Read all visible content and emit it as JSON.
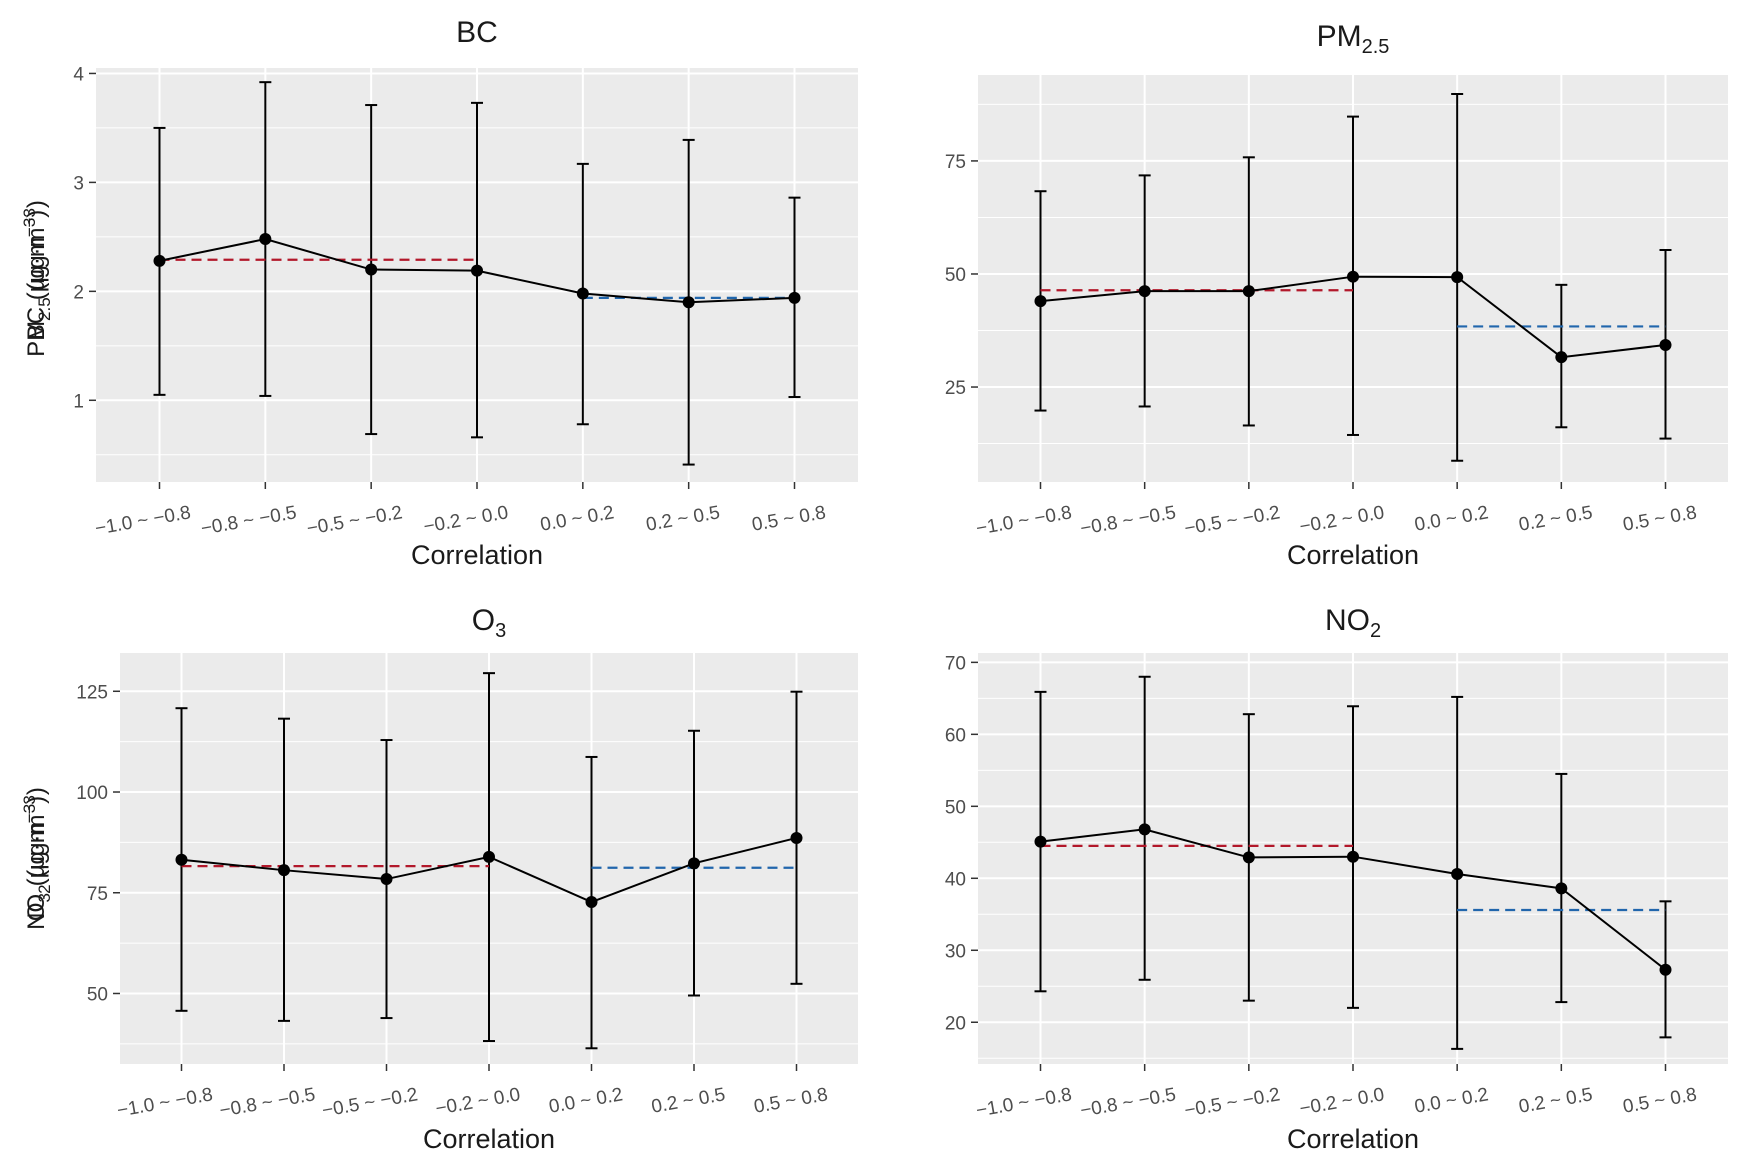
{
  "chart_data": [
    {
      "type": "line",
      "title": "BC",
      "title_sub": "",
      "xlabel": "Correlation",
      "ylabel": {
        "main": "BC",
        "sub": "",
        "unit": " (μg·m",
        "sup": "−3",
        "close": ")"
      },
      "categories": [
        "−1.0 ~ −0.8",
        "−0.8 ~ −0.5",
        "−0.5 ~ −0.2",
        "−0.2 ~ 0.0",
        "0.0 ~ 0.2",
        "0.2 ~ 0.5",
        "0.5 ~ 0.8"
      ],
      "ylim": [
        0.25,
        4.05
      ],
      "yticks": [
        1,
        2,
        3,
        4
      ],
      "yticklabels": [
        "1",
        "2",
        "3",
        "4"
      ],
      "means": [
        2.28,
        2.48,
        2.2,
        2.19,
        1.98,
        1.9,
        1.94
      ],
      "lower": [
        1.05,
        1.04,
        0.69,
        0.66,
        0.78,
        0.41,
        1.03
      ],
      "upper": [
        3.5,
        3.92,
        3.71,
        3.73,
        3.17,
        3.39,
        2.86
      ],
      "reference_lines": [
        {
          "name": "negative-correlation-mean",
          "color": "#b2182b",
          "from": 0,
          "to": 3,
          "value": 2.29
        },
        {
          "name": "positive-correlation-mean",
          "color": "#2166ac",
          "from": 4,
          "to": 6,
          "value": 1.94
        }
      ]
    },
    {
      "type": "line",
      "title": "PM",
      "title_sub": "2.5",
      "xlabel": "Correlation",
      "ylabel": {
        "main": "PM",
        "sub": "2.5",
        "unit": " (μg·m",
        "sup": "−3",
        "close": ")"
      },
      "categories": [
        "−1.0 ~ −0.8",
        "−0.8 ~ −0.5",
        "−0.5 ~ −0.2",
        "−0.2 ~ 0.0",
        "0.0 ~ 0.2",
        "0.2 ~ 0.5",
        "0.5 ~ 0.8"
      ],
      "ylim": [
        4,
        94
      ],
      "yticks": [
        25,
        50,
        75
      ],
      "yticklabels": [
        "25",
        "50",
        "75"
      ],
      "means": [
        44,
        46.2,
        46.2,
        49.4,
        49.3,
        31.6,
        34.3
      ],
      "lower": [
        19.8,
        20.7,
        16.5,
        14.4,
        8.7,
        16.1,
        13.6
      ],
      "upper": [
        68.3,
        71.8,
        75.8,
        84.8,
        89.8,
        47.6,
        55.3
      ],
      "reference_lines": [
        {
          "name": "negative-correlation-mean",
          "color": "#b2182b",
          "from": 0,
          "to": 3,
          "value": 46.4
        },
        {
          "name": "positive-correlation-mean",
          "color": "#2166ac",
          "from": 4,
          "to": 6,
          "value": 38.4
        }
      ]
    },
    {
      "type": "line",
      "title": "O",
      "title_sub": "3",
      "xlabel": "Correlation",
      "ylabel": {
        "main": "O",
        "sub": "3",
        "unit": " (μg·m",
        "sup": "−3",
        "close": ")"
      },
      "categories": [
        "−1.0 ~ −0.8",
        "−0.8 ~ −0.5",
        "−0.5 ~ −0.2",
        "−0.2 ~ 0.0",
        "0.0 ~ 0.2",
        "0.2 ~ 0.5",
        "0.5 ~ 0.8"
      ],
      "ylim": [
        32.5,
        134.5
      ],
      "yticks": [
        50,
        75,
        100,
        125
      ],
      "yticklabels": [
        "50",
        "75",
        "100",
        "125"
      ],
      "means": [
        83.2,
        80.6,
        78.4,
        83.9,
        72.7,
        82.3,
        88.6
      ],
      "lower": [
        45.7,
        43.2,
        43.9,
        38.2,
        36.4,
        49.5,
        52.4
      ],
      "upper": [
        120.8,
        118.2,
        112.9,
        129.5,
        108.7,
        115.2,
        124.9
      ],
      "reference_lines": [
        {
          "name": "negative-correlation-mean",
          "color": "#b2182b",
          "from": 0,
          "to": 3,
          "value": 81.6
        },
        {
          "name": "positive-correlation-mean",
          "color": "#2166ac",
          "from": 4,
          "to": 6,
          "value": 81.2
        }
      ]
    },
    {
      "type": "line",
      "title": "NO",
      "title_sub": "2",
      "xlabel": "Correlation",
      "ylabel": {
        "main": "NO",
        "sub": "2",
        "unit": " (μg·m",
        "sup": "−3",
        "close": ")"
      },
      "categories": [
        "−1.0 ~ −0.8",
        "−0.8 ~ −0.5",
        "−0.5 ~ −0.2",
        "−0.2 ~ 0.0",
        "0.0 ~ 0.2",
        "0.2 ~ 0.5",
        "0.5 ~ 0.8"
      ],
      "ylim": [
        14.2,
        71.3
      ],
      "yticks": [
        20,
        30,
        40,
        50,
        60,
        70
      ],
      "yticklabels": [
        "20",
        "30",
        "40",
        "50",
        "60",
        "70"
      ],
      "means": [
        45.1,
        46.8,
        42.9,
        43,
        40.6,
        38.6,
        27.3
      ],
      "lower": [
        24.3,
        25.9,
        23,
        22,
        16.3,
        22.8,
        17.9
      ],
      "upper": [
        65.9,
        68,
        62.8,
        63.9,
        65.2,
        54.5,
        36.8
      ],
      "reference_lines": [
        {
          "name": "negative-correlation-mean",
          "color": "#b2182b",
          "from": 0,
          "to": 3,
          "value": 44.5
        },
        {
          "name": "positive-correlation-mean",
          "color": "#2166ac",
          "from": 4,
          "to": 6,
          "value": 35.6
        }
      ]
    }
  ]
}
